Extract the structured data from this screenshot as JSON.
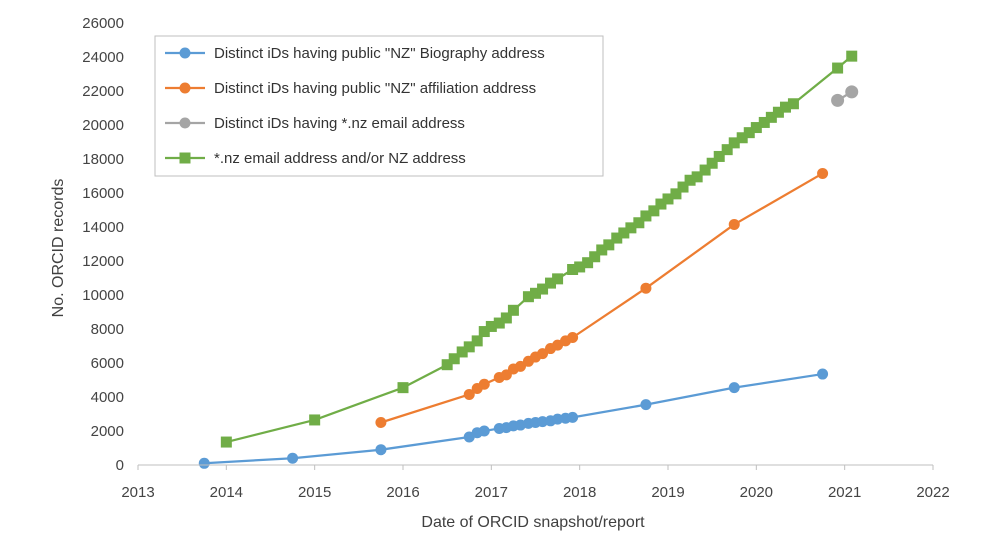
{
  "chart_data": {
    "type": "line",
    "title": "",
    "xlabel": "Date of ORCID snapshot/report",
    "ylabel": "No. ORCID records",
    "xlim": [
      2013,
      2022
    ],
    "ylim": [
      0,
      26000
    ],
    "x_ticks": [
      2013,
      2014,
      2015,
      2016,
      2017,
      2018,
      2019,
      2020,
      2021,
      2022
    ],
    "y_ticks": [
      0,
      2000,
      4000,
      6000,
      8000,
      10000,
      12000,
      14000,
      16000,
      18000,
      20000,
      22000,
      24000,
      26000
    ],
    "grid": false,
    "legend_position": "top-left",
    "series": [
      {
        "name": "Distinct iDs having public \"NZ\" Biography address",
        "color": "#5B9BD5",
        "marker": "circle",
        "x": [
          2013.75,
          2014.75,
          2015.75,
          2016.75,
          2016.84,
          2016.92,
          2017.09,
          2017.17,
          2017.25,
          2017.33,
          2017.42,
          2017.5,
          2017.58,
          2017.67,
          2017.75,
          2017.84,
          2017.92,
          2018.75,
          2019.75,
          2020.75
        ],
        "y": [
          100,
          400,
          900,
          1650,
          1900,
          2000,
          2150,
          2200,
          2300,
          2350,
          2450,
          2500,
          2550,
          2600,
          2700,
          2750,
          2800,
          3550,
          4550,
          5350
        ]
      },
      {
        "name": "Distinct iDs having public \"NZ\" affiliation address",
        "color": "#ED7D31",
        "marker": "circle",
        "x": [
          2015.75,
          2016.75,
          2016.84,
          2016.92,
          2017.09,
          2017.17,
          2017.25,
          2017.33,
          2017.42,
          2017.5,
          2017.58,
          2017.67,
          2017.75,
          2017.84,
          2017.92,
          2018.75,
          2019.75,
          2020.75
        ],
        "y": [
          2500,
          4150,
          4500,
          4750,
          5150,
          5300,
          5650,
          5800,
          6100,
          6350,
          6550,
          6850,
          7050,
          7300,
          7500,
          10400,
          14150,
          17150
        ]
      },
      {
        "name": "Distinct iDs having *.nz email address",
        "color": "#A5A5A5",
        "marker": "circle",
        "x": [
          2020.92,
          2021.08
        ],
        "y": [
          21450,
          21950
        ]
      },
      {
        "name": "*.nz email address and/or NZ address",
        "color": "#70AD47",
        "marker": "square",
        "x": [
          2014.0,
          2015.0,
          2016.0,
          2016.5,
          2016.58,
          2016.67,
          2016.75,
          2016.84,
          2016.92,
          2017.0,
          2017.09,
          2017.17,
          2017.25,
          2017.42,
          2017.5,
          2017.58,
          2017.67,
          2017.75,
          2017.92,
          2018.0,
          2018.09,
          2018.17,
          2018.25,
          2018.33,
          2018.42,
          2018.5,
          2018.58,
          2018.67,
          2018.75,
          2018.84,
          2018.92,
          2019.0,
          2019.09,
          2019.17,
          2019.25,
          2019.33,
          2019.42,
          2019.5,
          2019.58,
          2019.67,
          2019.75,
          2019.84,
          2019.92,
          2020.0,
          2020.09,
          2020.17,
          2020.25,
          2020.33,
          2020.42,
          2020.92,
          2021.08
        ],
        "y": [
          1350,
          2650,
          4550,
          5900,
          6250,
          6650,
          6950,
          7300,
          7850,
          8150,
          8350,
          8650,
          9100,
          9900,
          10100,
          10350,
          10700,
          10950,
          11500,
          11650,
          11900,
          12250,
          12650,
          12950,
          13350,
          13650,
          13950,
          14250,
          14650,
          14950,
          15350,
          15650,
          15950,
          16350,
          16750,
          16950,
          17350,
          17750,
          18150,
          18550,
          18950,
          19250,
          19550,
          19850,
          20150,
          20450,
          20750,
          21050,
          21250,
          23350,
          24050
        ]
      }
    ]
  }
}
